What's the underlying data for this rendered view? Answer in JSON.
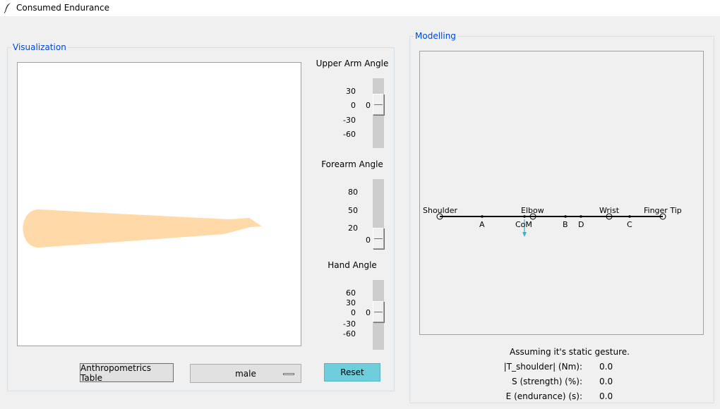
{
  "window": {
    "title": "Consumed Endurance",
    "icon": "feather-icon"
  },
  "visualization": {
    "label": "Visualization",
    "upper_arm": {
      "title": "Upper Arm Angle",
      "ticks": [
        "30",
        "0",
        "-30",
        "-60"
      ],
      "value": "0"
    },
    "forearm": {
      "title": "Forearm Angle",
      "ticks": [
        "80",
        "50",
        "20"
      ],
      "value": "0"
    },
    "hand": {
      "title": "Hand Angle",
      "ticks": [
        "60",
        "30",
        "0",
        "-30",
        "-60"
      ],
      "value": "0"
    },
    "arm_color": "#ffdaa8",
    "anthropometrics_button": "Anthropometrics Table",
    "gender_select": "male",
    "reset_button": "Reset"
  },
  "modelling": {
    "label": "Modelling",
    "point_labels": {
      "shoulder": "Shoulder",
      "elbow": "Elbow",
      "wrist": "Wrist",
      "finger_tip": "Finger Tip",
      "a": "A",
      "com": "CoM",
      "b": "B",
      "d": "D",
      "c": "C"
    },
    "arrow_color": "#33b5d6",
    "status": "Assuming it's static gesture.",
    "metrics": [
      {
        "label": "|T_shoulder| (Nm):",
        "value": "0.0"
      },
      {
        "label": "S (strength) (%):",
        "value": "0.0"
      },
      {
        "label": "E (endurance) (s):",
        "value": "0.0"
      }
    ]
  }
}
